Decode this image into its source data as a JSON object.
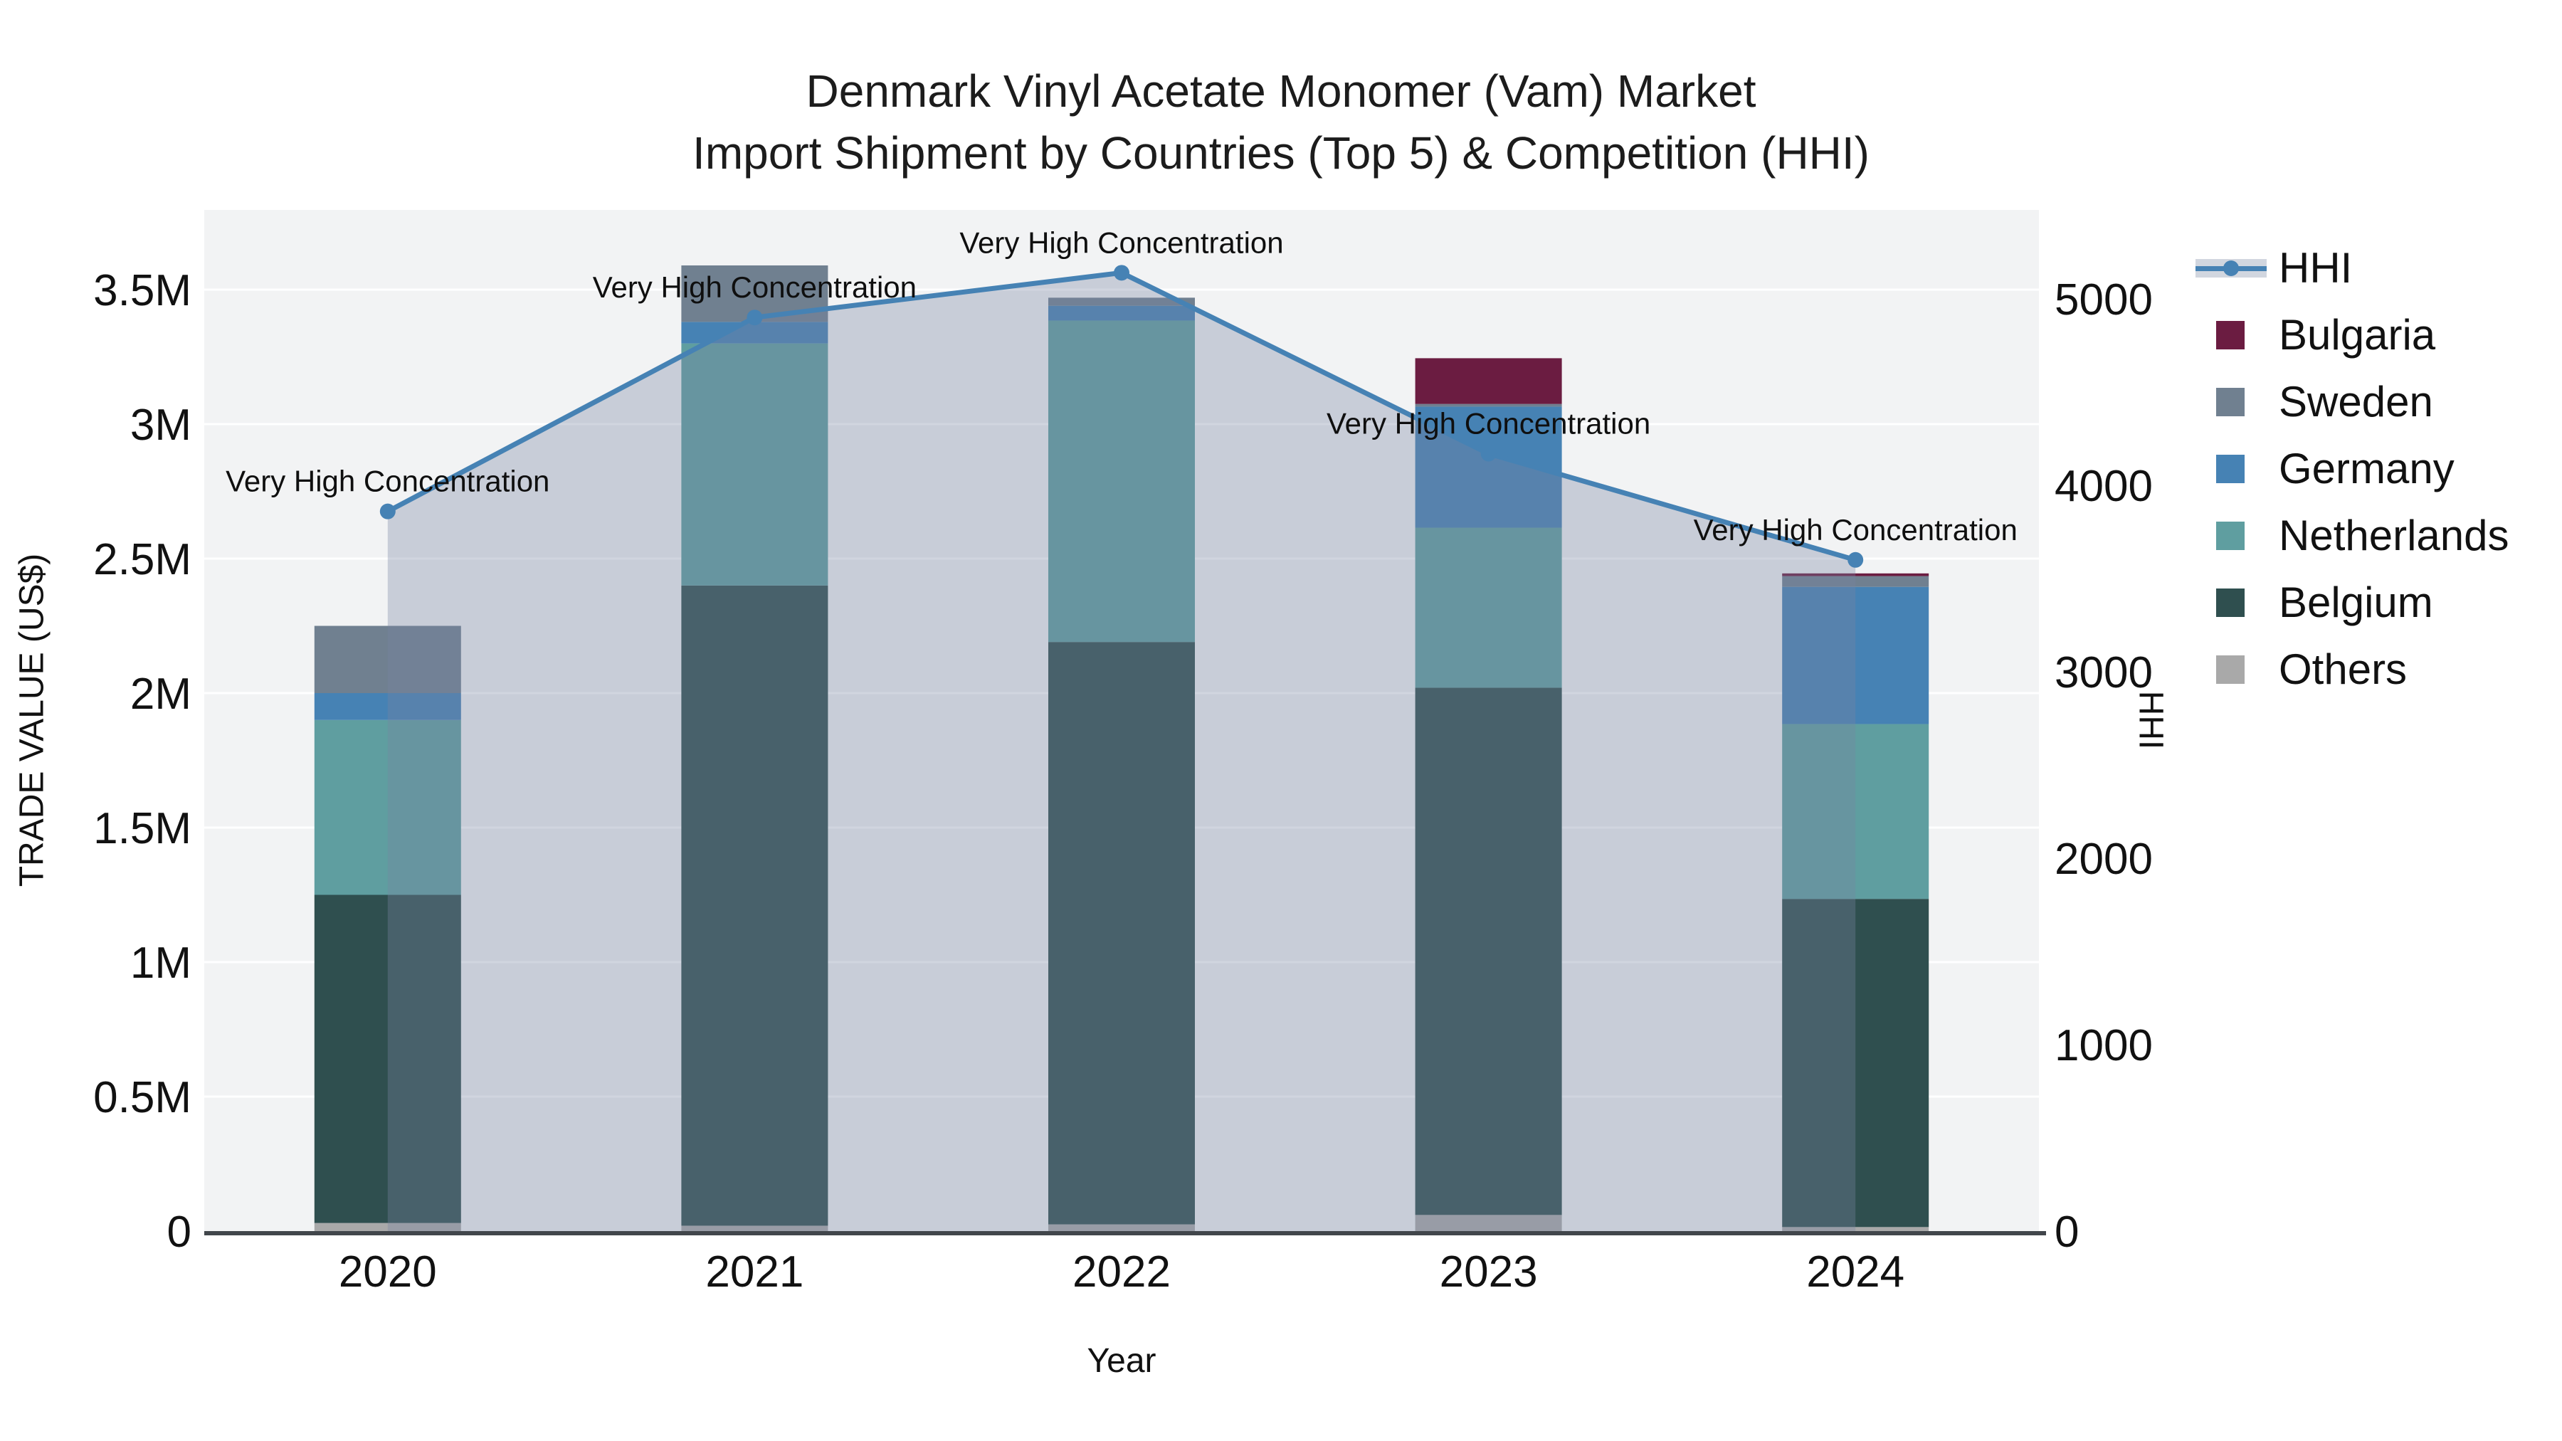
{
  "chart_data": {
    "type": "bar",
    "stacked": true,
    "secondary_line": "HHI",
    "title": "Denmark Vinyl Acetate Monomer (Vam) Market",
    "subtitle": "Import Shipment by Countries (Top 5) & Competition (HHI)",
    "xlabel": "Year",
    "ylabel_left": "TRADE VALUE (US$)",
    "ylabel_right": "HHI",
    "categories": [
      "2020",
      "2021",
      "2022",
      "2023",
      "2024"
    ],
    "value_unit": "million US$",
    "series": [
      {
        "name": "Others",
        "color": "#a9a9a9",
        "values": [
          0.03,
          0.02,
          0.025,
          0.06,
          0.015
        ]
      },
      {
        "name": "Belgium",
        "color": "#2f4f4f",
        "values": [
          1.22,
          2.38,
          2.165,
          1.96,
          1.22
        ]
      },
      {
        "name": "Netherlands",
        "color": "#5f9ea0",
        "values": [
          0.65,
          0.9,
          1.195,
          0.595,
          0.65
        ]
      },
      {
        "name": "Germany",
        "color": "#4682b4",
        "values": [
          0.1,
          0.08,
          0.055,
          0.45,
          0.51
        ]
      },
      {
        "name": "Sweden",
        "color": "#708090",
        "values": [
          0.25,
          0.21,
          0.03,
          0.01,
          0.04
        ]
      },
      {
        "name": "Bulgaria",
        "color": "#6b1c41",
        "values": [
          0,
          0,
          0,
          0.17,
          0.01
        ]
      }
    ],
    "hhi": {
      "name": "HHI",
      "line_color": "#4682b4",
      "area_fill": "rgba(120,133,161,0.34)",
      "values": [
        3860,
        4900,
        5140,
        4170,
        3600
      ]
    },
    "annotation_text": "Very High Concentration",
    "annotations": [
      {
        "category": "2020",
        "text": "Very High Concentration"
      },
      {
        "category": "2021",
        "text": "Very High Concentration"
      },
      {
        "category": "2022",
        "text": "Very High Concentration"
      },
      {
        "category": "2023",
        "text": "Very High Concentration"
      },
      {
        "category": "2024",
        "text": "Very High Concentration"
      }
    ],
    "y_left_ticks": [
      {
        "v": 0,
        "label": "0"
      },
      {
        "v": 0.5,
        "label": "0.5M"
      },
      {
        "v": 1,
        "label": "1M"
      },
      {
        "v": 1.5,
        "label": "1.5M"
      },
      {
        "v": 2,
        "label": "2M"
      },
      {
        "v": 2.5,
        "label": "2.5M"
      },
      {
        "v": 3,
        "label": "3M"
      },
      {
        "v": 3.5,
        "label": "3.5M"
      }
    ],
    "y_right_ticks": [
      {
        "v": 0,
        "label": "0"
      },
      {
        "v": 1000,
        "label": "1000"
      },
      {
        "v": 2000,
        "label": "2000"
      },
      {
        "v": 3000,
        "label": "3000"
      },
      {
        "v": 4000,
        "label": "4000"
      },
      {
        "v": 5000,
        "label": "5000"
      }
    ],
    "grid": true,
    "legend_position": "right"
  },
  "legend": {
    "items": [
      {
        "label": "HHI",
        "type": "line",
        "color": "#4682b4"
      },
      {
        "label": "Bulgaria",
        "type": "square",
        "color": "#6b1c41"
      },
      {
        "label": "Sweden",
        "type": "square",
        "color": "#708090"
      },
      {
        "label": "Germany",
        "type": "square",
        "color": "#4682b4"
      },
      {
        "label": "Netherlands",
        "type": "square",
        "color": "#5f9ea0"
      },
      {
        "label": "Belgium",
        "type": "square",
        "color": "#2f4f4f"
      },
      {
        "label": "Others",
        "type": "square",
        "color": "#a9a9a9"
      }
    ]
  },
  "style": {
    "plot_bg": "#f2f3f4",
    "gridline_color": "#ffffff",
    "axis_line_color": "#41464b",
    "text_color": "#111111"
  }
}
